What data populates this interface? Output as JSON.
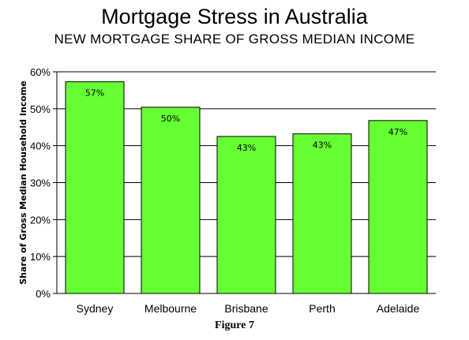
{
  "chart_data": {
    "type": "bar",
    "title": "Mortgage Stress in Australia",
    "subtitle": "NEW MORTGAGE SHARE OF GROSS MEDIAN INCOME",
    "xlabel": "",
    "ylabel": "Share of Gross Median Household Income",
    "categories": [
      "Sydney",
      "Melbourne",
      "Brisbane",
      "Perth",
      "Adelaide"
    ],
    "values": [
      57.3,
      50.4,
      42.5,
      43.2,
      46.8
    ],
    "data_labels": [
      "57%",
      "50%",
      "43%",
      "43%",
      "47%"
    ],
    "ylim": [
      0,
      60
    ],
    "yticks": [
      0,
      10,
      20,
      30,
      40,
      50,
      60
    ],
    "ytick_labels": [
      "0%",
      "10%",
      "20%",
      "30%",
      "40%",
      "50%",
      "60%"
    ],
    "grid": true,
    "bar_color": "#66ff33",
    "caption": "Figure 7"
  }
}
